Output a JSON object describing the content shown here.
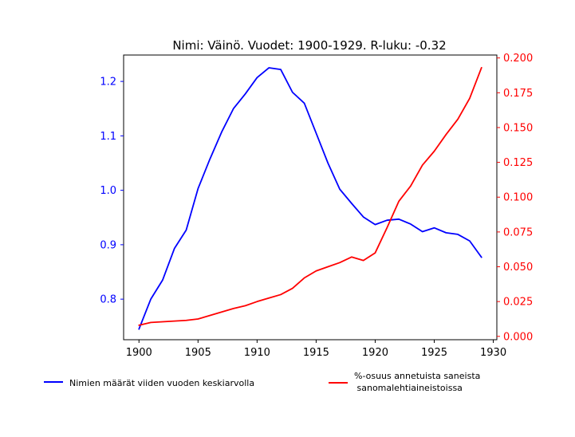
{
  "chart_data": {
    "type": "line",
    "title": "Nimi: Väinö. Vuodet: 1900-1929. R-luku: -0.32",
    "xlabel": "",
    "ylabel_left": "",
    "ylabel_right": "",
    "x": [
      1900,
      1901,
      1902,
      1903,
      1904,
      1905,
      1906,
      1907,
      1908,
      1909,
      1910,
      1911,
      1912,
      1913,
      1914,
      1915,
      1916,
      1917,
      1918,
      1919,
      1920,
      1921,
      1922,
      1923,
      1924,
      1925,
      1926,
      1927,
      1928,
      1929
    ],
    "xlim": [
      1898.7,
      1930.3
    ],
    "x_ticks": [
      1900,
      1905,
      1910,
      1915,
      1920,
      1925,
      1930
    ],
    "left_axis": {
      "ylim": [
        0.7255,
        1.2485
      ],
      "ticks": [
        "0.8",
        "0.9",
        "1.0",
        "1.1",
        "1.2"
      ],
      "tick_values": [
        0.8,
        0.9,
        1.0,
        1.1,
        1.2
      ],
      "color": "#0000ff"
    },
    "right_axis": {
      "ylim": [
        -0.0024,
        0.2021
      ],
      "ticks": [
        "0.000",
        "0.025",
        "0.050",
        "0.075",
        "0.100",
        "0.125",
        "0.150",
        "0.175",
        "0.200"
      ],
      "tick_values": [
        0,
        0.025,
        0.05,
        0.075,
        0.1,
        0.125,
        0.15,
        0.175,
        0.2
      ],
      "color": "#ff0000"
    },
    "series": [
      {
        "name": "Nimien määrät viiden vuoden keskiarvolla",
        "axis": "left",
        "color": "#0000ff",
        "values": [
          0.745,
          0.8,
          0.835,
          0.893,
          0.927,
          1.003,
          1.057,
          1.107,
          1.15,
          1.177,
          1.207,
          1.225,
          1.222,
          1.18,
          1.16,
          1.105,
          1.05,
          1.002,
          0.976,
          0.951,
          0.937,
          0.945,
          0.947,
          0.938,
          0.924,
          0.931,
          0.922,
          0.919,
          0.907,
          0.877
        ]
      },
      {
        "name": "%-osuus annetuista saneista sanomalehtiaineistoissa",
        "name_lines": [
          "%-osuus annetuista saneista",
          " sanomalehtiaineistoissa"
        ],
        "axis": "right",
        "color": "#ff0000",
        "values": [
          0.008,
          0.01,
          0.0105,
          0.011,
          0.0115,
          0.0125,
          0.015,
          0.0175,
          0.02,
          0.022,
          0.025,
          0.0275,
          0.03,
          0.0345,
          0.042,
          0.047,
          0.05,
          0.053,
          0.057,
          0.0545,
          0.06,
          0.078,
          0.097,
          0.108,
          0.123,
          0.133,
          0.145,
          0.156,
          0.171,
          0.193
        ]
      }
    ],
    "grid": false,
    "legend_placement": "below plot"
  }
}
